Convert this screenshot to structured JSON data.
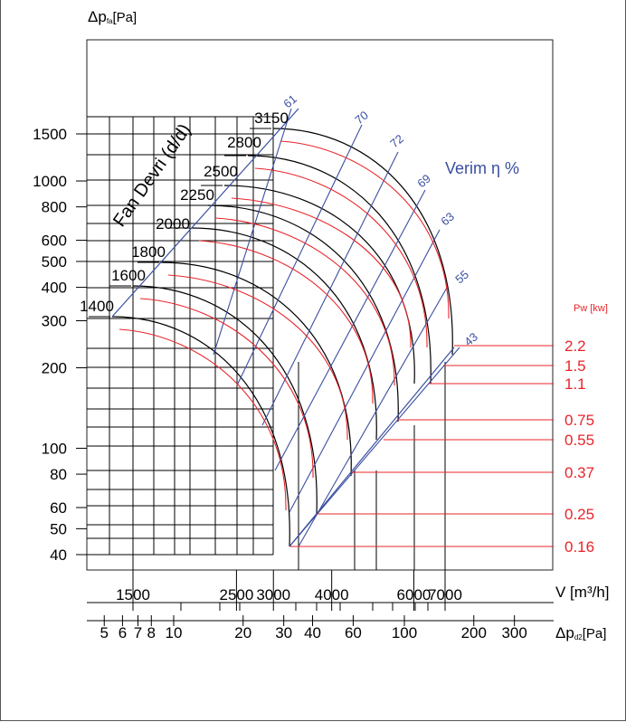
{
  "chart_data": {
    "type": "line",
    "y_axis_label_main": "Δp",
    "y_axis_label_sub": "fa",
    "y_axis_label_unit": "[Pa]",
    "x_axis_label": "V [m³/h]",
    "x2_axis_label_main": "Δp",
    "x2_axis_label_sub": "d2",
    "x2_axis_label_unit": "[Pa]",
    "speed_title": "Fan Devri (d/d)",
    "efficiency_title": "Verim η %",
    "power_title": "Pw [kw]",
    "y_ticks": [
      "1500",
      "1000",
      "800",
      "600",
      "500",
      "400",
      "300",
      "200",
      "100",
      "80",
      "60",
      "50",
      "40"
    ],
    "y_tick_values": [
      1500,
      1000,
      800,
      600,
      500,
      400,
      300,
      200,
      100,
      80,
      60,
      50,
      40
    ],
    "x_ticks": [
      "1500",
      "2500",
      "3000",
      "4000",
      "6000",
      "7000"
    ],
    "x_tick_values": [
      1500,
      2500,
      3000,
      4000,
      6000,
      7000
    ],
    "x2_ticks": [
      "5",
      "6",
      "7",
      "8",
      "10",
      "20",
      "30",
      "40",
      "60",
      "100",
      "200",
      "300"
    ],
    "x2_tick_values": [
      5,
      6,
      7,
      8,
      10,
      20,
      30,
      40,
      60,
      100,
      200,
      300
    ],
    "speeds": [
      "1400",
      "1600",
      "1800",
      "2000",
      "2250",
      "2500",
      "2800",
      "3150"
    ],
    "efficiencies": [
      "61",
      "70",
      "72",
      "69",
      "63",
      "55",
      "43"
    ],
    "powers": [
      "2.2",
      "1.5",
      "1.1",
      "0.75",
      "0.55",
      "0.37",
      "0.25",
      "0.16"
    ],
    "colors": {
      "fan_curve": "#000000",
      "power_curve": "#e8242a",
      "efficiency_line": "#3a4fa0"
    }
  }
}
